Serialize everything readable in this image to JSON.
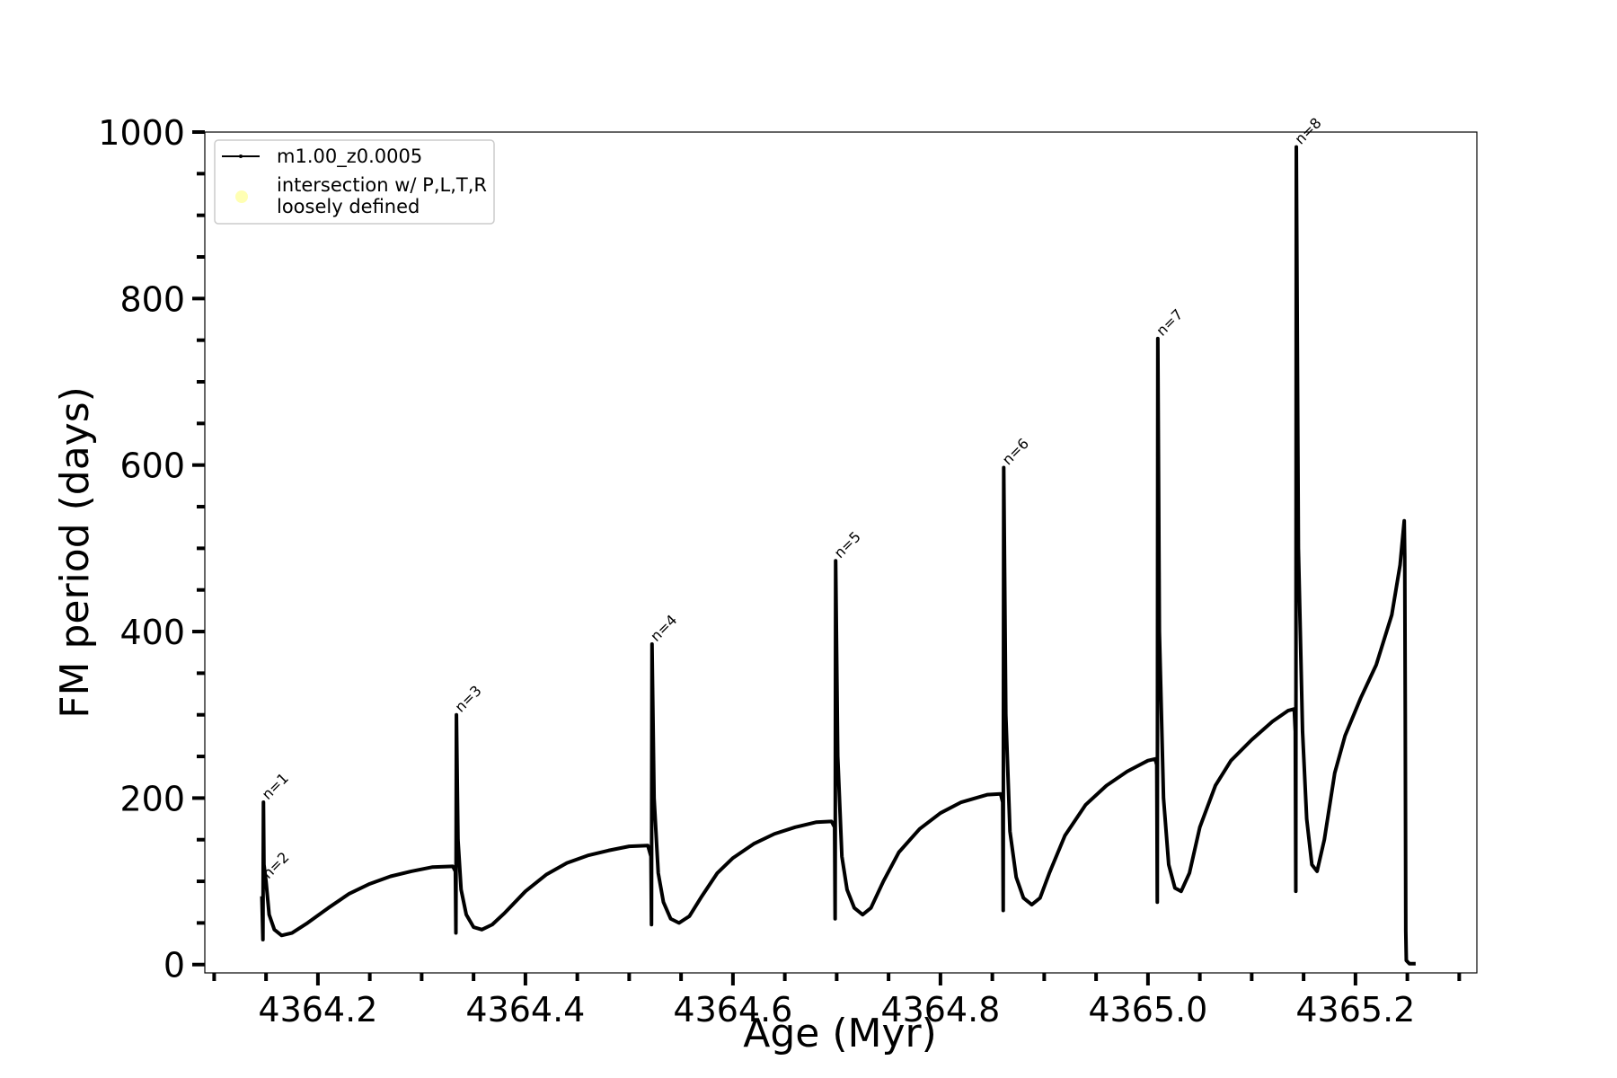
{
  "chart_data": {
    "type": "line",
    "x_label": "Age (Myr)",
    "y_label": "FM period (days)",
    "xlim": [
      4364.091,
      4365.317
    ],
    "ylim": [
      -10,
      1000
    ],
    "xticks": [
      4364.2,
      4364.4,
      4364.6,
      4364.8,
      {
        "value": 4365,
        "label": "4365.0"
      },
      4365.2
    ],
    "xminorticks": [
      4364.1,
      4364.15,
      4364.25,
      4364.3,
      4364.35,
      4364.45,
      4364.5,
      4364.55,
      4364.65,
      4364.7,
      4364.75,
      4364.85,
      4364.9,
      4364.95,
      4365.05,
      4365.1,
      4365.15,
      4365.25,
      4365.3
    ],
    "yticks": [
      0,
      200,
      400,
      600,
      800,
      1000
    ],
    "yminorticks": [
      50,
      100,
      150,
      250,
      300,
      350,
      450,
      500,
      550,
      650,
      700,
      750,
      850,
      900,
      950
    ],
    "legend": "upper left",
    "series": [
      {
        "name": "m1.00_z0.0005",
        "color": "#000000",
        "x": [
          4364.146,
          4364.147,
          4364.1475,
          4364.148,
          4364.15,
          4364.153,
          4364.158,
          4364.165,
          4364.175,
          4364.19,
          4364.21,
          4364.23,
          4364.25,
          4364.27,
          4364.29,
          4364.31,
          4364.33,
          4364.3325,
          4364.333,
          4364.3335,
          4364.335,
          4364.338,
          4364.343,
          4364.35,
          4364.358,
          4364.368,
          4364.38,
          4364.4,
          4364.42,
          4364.44,
          4364.46,
          4364.48,
          4364.5,
          4364.518,
          4364.521,
          4364.5215,
          4364.522,
          4364.524,
          4364.528,
          4364.533,
          4364.54,
          4364.548,
          4364.558,
          4364.57,
          4364.585,
          4364.6,
          4364.62,
          4364.64,
          4364.66,
          4364.68,
          4364.695,
          4364.698,
          4364.6985,
          4364.699,
          4364.701,
          4364.705,
          4364.71,
          4364.717,
          4364.725,
          4364.733,
          4364.745,
          4364.76,
          4364.78,
          4364.8,
          4364.82,
          4364.845,
          4364.858,
          4364.86,
          4364.8605,
          4364.861,
          4364.863,
          4364.867,
          4364.873,
          4364.88,
          4364.888,
          4364.896,
          4364.905,
          4364.92,
          4364.94,
          4364.96,
          4364.98,
          4365.0,
          4365.007,
          4365.0085,
          4365.009,
          4365.0095,
          4365.011,
          4365.015,
          4365.02,
          4365.026,
          4365.032,
          4365.04,
          4365.05,
          4365.065,
          4365.08,
          4365.1,
          4365.12,
          4365.135,
          4365.141,
          4365.142,
          4365.1425,
          4365.143,
          4365.145,
          4365.149,
          4365.153,
          4365.158,
          4365.163,
          4365.17,
          4365.18,
          4365.19,
          4365.205,
          4365.22,
          4365.235,
          4365.243,
          4365.247,
          4365.2475,
          4365.248,
          4365.2485,
          4365.249,
          4365.252,
          4365.258
        ],
        "values": [
          82,
          30,
          195,
          120,
          100,
          60,
          42,
          35,
          38,
          50,
          68,
          85,
          97,
          106,
          112,
          117,
          118,
          112,
          38,
          300,
          150,
          90,
          60,
          45,
          42,
          48,
          62,
          88,
          108,
          122,
          131,
          137,
          142,
          143,
          130,
          48,
          385,
          200,
          110,
          75,
          55,
          50,
          58,
          82,
          110,
          128,
          145,
          157,
          165,
          171,
          172,
          165,
          55,
          485,
          250,
          130,
          90,
          68,
          60,
          68,
          100,
          135,
          163,
          182,
          195,
          204,
          205,
          195,
          65,
          597,
          300,
          160,
          105,
          80,
          72,
          80,
          110,
          155,
          192,
          215,
          232,
          245,
          247,
          240,
          75,
          752,
          400,
          200,
          120,
          92,
          88,
          110,
          165,
          215,
          245,
          270,
          292,
          305,
          307,
          280,
          88,
          982,
          500,
          280,
          175,
          120,
          112,
          150,
          230,
          275,
          320,
          360,
          420,
          480,
          533,
          490,
          300,
          40,
          5,
          1,
          1
        ]
      },
      {
        "name": "intersection w/ P,L,T,R\nloosely defined",
        "color": "#ffffb3",
        "x": [],
        "values": []
      }
    ],
    "annotations": [
      {
        "text": "n=1",
        "x": 4364.1475,
        "y": 195
      },
      {
        "text": "n=2",
        "x": 4364.148,
        "y": 100
      },
      {
        "text": "n=3",
        "x": 4364.3335,
        "y": 300
      },
      {
        "text": "n=4",
        "x": 4364.522,
        "y": 385
      },
      {
        "text": "n=5",
        "x": 4364.699,
        "y": 485
      },
      {
        "text": "n=6",
        "x": 4364.861,
        "y": 597
      },
      {
        "text": "n=7",
        "x": 4365.0095,
        "y": 752
      },
      {
        "text": "n=8",
        "x": 4365.143,
        "y": 982
      }
    ]
  }
}
